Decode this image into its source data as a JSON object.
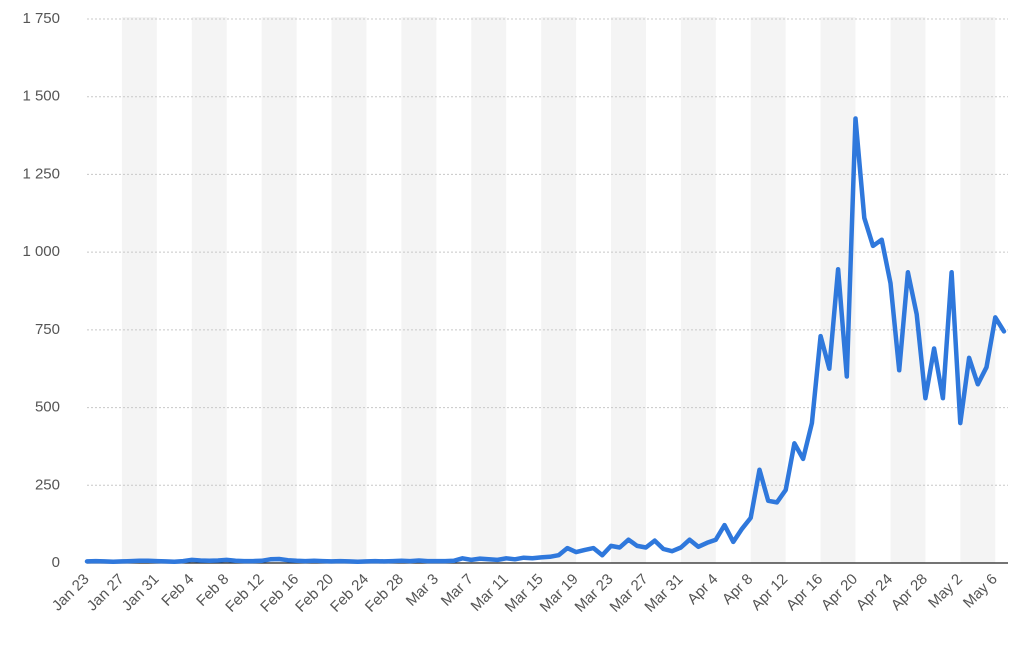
{
  "chart_data": {
    "type": "line",
    "categories": [
      "Jan 23",
      null,
      null,
      null,
      "Jan 27",
      null,
      null,
      null,
      "Jan 31",
      null,
      null,
      null,
      "Feb 4",
      null,
      null,
      null,
      "Feb 8",
      null,
      null,
      null,
      "Feb 12",
      null,
      null,
      null,
      "Feb 16",
      null,
      null,
      null,
      "Feb 20",
      null,
      null,
      null,
      "Feb 24",
      null,
      null,
      null,
      "Feb 28",
      null,
      null,
      null,
      "Mar 3",
      null,
      null,
      null,
      "Mar 7",
      null,
      null,
      null,
      "Mar 11",
      null,
      null,
      null,
      "Mar 15",
      null,
      null,
      null,
      "Mar 19",
      null,
      null,
      null,
      "Mar 23",
      null,
      null,
      null,
      "Mar 27",
      null,
      null,
      null,
      "Mar 31",
      null,
      null,
      null,
      "Apr 4",
      null,
      null,
      null,
      "Apr 8",
      null,
      null,
      null,
      "Apr 12",
      null,
      null,
      null,
      "Apr 16",
      null,
      null,
      null,
      "Apr 20",
      null,
      null,
      null,
      "Apr 24",
      null,
      null,
      null,
      "Apr 28",
      null,
      null,
      null,
      "May 2",
      null,
      null,
      null,
      "May 6",
      null
    ],
    "values": [
      5,
      6,
      5,
      4,
      5,
      6,
      7,
      7,
      6,
      5,
      4,
      6,
      10,
      8,
      7,
      8,
      10,
      7,
      6,
      6,
      7,
      12,
      13,
      9,
      7,
      6,
      7,
      6,
      5,
      6,
      5,
      4,
      5,
      6,
      5,
      6,
      7,
      6,
      8,
      6,
      6,
      6,
      7,
      15,
      10,
      14,
      12,
      10,
      15,
      12,
      17,
      15,
      18,
      20,
      25,
      48,
      35,
      42,
      48,
      25,
      55,
      50,
      75,
      55,
      50,
      72,
      45,
      38,
      50,
      75,
      52,
      65,
      75,
      122,
      68,
      110,
      145,
      300,
      200,
      195,
      235,
      385,
      335,
      450,
      730,
      625,
      945,
      600,
      1430,
      1110,
      1020,
      1040,
      900,
      620,
      935,
      800,
      530,
      690,
      530,
      935,
      450,
      660,
      575,
      630,
      790,
      745
    ],
    "color": "#2f78dc",
    "ylim": [
      0,
      1750
    ],
    "yticks": [
      0,
      250,
      500,
      750,
      {
        "value": 1000,
        "label": "1 000"
      },
      {
        "value": 1250,
        "label": "1 250"
      },
      {
        "value": 1500,
        "label": "1 500"
      },
      {
        "value": 1750,
        "label": "1 750"
      }
    ],
    "grid": true
  }
}
